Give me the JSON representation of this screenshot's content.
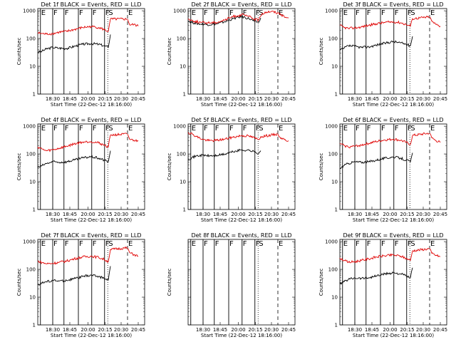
{
  "chart_data": [
    {
      "type": "line",
      "title": "Det 1f BLACK = Events, RED = LLD",
      "xlabel": "Start Time (22-Dec-12 18:16:00)",
      "ylabel": "Counts/sec",
      "xticks": [
        "18:30",
        "18:45",
        "20:00",
        "20:15",
        "20:30",
        "20:45"
      ],
      "yticks": [
        "1",
        "10",
        "100",
        "1000"
      ],
      "ylim": [
        1,
        1000
      ],
      "log_y": true,
      "markers": [
        "E",
        "F",
        "F",
        "F",
        "F",
        "F",
        "S",
        "E"
      ],
      "series": [
        {
          "name": "Events",
          "color": "#000000",
          "x": [
            0.0,
            0.04,
            0.08,
            0.14,
            0.2,
            0.27,
            0.34,
            0.42,
            0.5,
            0.57,
            0.62,
            0.66,
            0.68
          ],
          "y": [
            32,
            35,
            42,
            48,
            45,
            44,
            52,
            62,
            66,
            62,
            55,
            48,
            140
          ]
        },
        {
          "name": "LLD",
          "color": "#e00000",
          "x": [
            0.0,
            0.04,
            0.08,
            0.14,
            0.2,
            0.27,
            0.34,
            0.42,
            0.5,
            0.57,
            0.62,
            0.66,
            0.68,
            0.84,
            0.86,
            0.9,
            0.94
          ],
          "y": [
            160,
            150,
            145,
            150,
            170,
            180,
            210,
            250,
            270,
            250,
            210,
            180,
            500,
            500,
            310,
            320,
            280
          ]
        }
      ]
    },
    {
      "type": "line",
      "title": "Det 2f BLACK = Events, RED = LLD",
      "xlabel": "Start Time (22-Dec-12 18:16:00)",
      "ylabel": "Counts/sec",
      "xticks": [
        "18:30",
        "18:45",
        "20:00",
        "20:15",
        "20:30",
        "20:45"
      ],
      "yticks": [
        "1",
        "10",
        "100",
        "1000"
      ],
      "ylim": [
        1,
        1000
      ],
      "log_y": true,
      "markers": [
        "E",
        "F",
        "F",
        "F",
        "F",
        "F",
        "S",
        "E"
      ],
      "series": [
        {
          "name": "Events",
          "color": "#000000",
          "x": [
            0.0,
            0.06,
            0.12,
            0.18,
            0.26,
            0.34,
            0.42,
            0.5,
            0.57,
            0.62,
            0.66,
            0.68
          ],
          "y": [
            430,
            360,
            330,
            320,
            330,
            400,
            520,
            620,
            520,
            420,
            380,
            550
          ]
        },
        {
          "name": "LLD",
          "color": "#e00000",
          "x": [
            0.0,
            0.06,
            0.12,
            0.18,
            0.26,
            0.34,
            0.42,
            0.5,
            0.57,
            0.62,
            0.66,
            0.68,
            0.72,
            0.78,
            0.86,
            0.9,
            0.94
          ],
          "y": [
            500,
            420,
            380,
            370,
            380,
            460,
            620,
            720,
            620,
            500,
            460,
            650,
            900,
            950,
            800,
            600,
            550
          ]
        }
      ]
    },
    {
      "type": "line",
      "title": "Det 3f BLACK = Events, RED = LLD",
      "xlabel": "Start Time (22-Dec-12 18:16:00)",
      "ylabel": "Counts/sec",
      "xticks": [
        "18:30",
        "18:45",
        "20:00",
        "20:15",
        "20:30",
        "20:45"
      ],
      "yticks": [
        "1",
        "10",
        "100",
        "1000"
      ],
      "ylim": [
        1,
        1000
      ],
      "log_y": true,
      "markers": [
        "E",
        "F",
        "F",
        "F",
        "F",
        "F",
        "S",
        "E"
      ],
      "series": [
        {
          "name": "Events",
          "color": "#000000",
          "x": [
            0.0,
            0.04,
            0.08,
            0.14,
            0.2,
            0.27,
            0.34,
            0.42,
            0.5,
            0.57,
            0.62,
            0.66,
            0.68
          ],
          "y": [
            38,
            45,
            55,
            52,
            48,
            50,
            58,
            68,
            78,
            70,
            62,
            55,
            120
          ]
        },
        {
          "name": "LLD",
          "color": "#e00000",
          "x": [
            0.0,
            0.04,
            0.08,
            0.14,
            0.2,
            0.27,
            0.34,
            0.42,
            0.5,
            0.57,
            0.62,
            0.66,
            0.68,
            0.84,
            0.86,
            0.9,
            0.94
          ],
          "y": [
            300,
            250,
            230,
            240,
            260,
            300,
            340,
            380,
            400,
            370,
            320,
            280,
            520,
            600,
            420,
            320,
            280
          ]
        }
      ]
    },
    {
      "type": "line",
      "title": "Det 4f BLACK = Events, RED = LLD",
      "xlabel": "Start Time (22-Dec-12 18:16:00)",
      "ylabel": "Counts/sec",
      "xticks": [
        "18:30",
        "18:45",
        "20:00",
        "20:15",
        "20:30",
        "20:45"
      ],
      "yticks": [
        "1",
        "10",
        "100",
        "1000"
      ],
      "ylim": [
        1,
        1000
      ],
      "log_y": true,
      "markers": [
        "E",
        "F",
        "F",
        "F",
        "F",
        "F",
        "S",
        "E"
      ],
      "series": [
        {
          "name": "Events",
          "color": "#000000",
          "x": [
            0.0,
            0.04,
            0.08,
            0.14,
            0.2,
            0.27,
            0.34,
            0.42,
            0.5,
            0.57,
            0.62,
            0.66,
            0.68
          ],
          "y": [
            32,
            38,
            45,
            52,
            50,
            52,
            60,
            72,
            80,
            70,
            60,
            52,
            130
          ]
        },
        {
          "name": "LLD",
          "color": "#e00000",
          "x": [
            0.0,
            0.04,
            0.08,
            0.14,
            0.2,
            0.27,
            0.34,
            0.42,
            0.5,
            0.57,
            0.62,
            0.66,
            0.68,
            0.84,
            0.86,
            0.9,
            0.94
          ],
          "y": [
            180,
            150,
            130,
            140,
            160,
            190,
            230,
            270,
            280,
            250,
            210,
            180,
            480,
            520,
            340,
            310,
            290
          ]
        }
      ]
    },
    {
      "type": "line",
      "title": "Det 5f BLACK = Events, RED = LLD",
      "xlabel": "Start Time (22-Dec-12 18:16:00)",
      "ylabel": "Counts/sec",
      "xticks": [
        "18:30",
        "18:45",
        "20:00",
        "20:15",
        "20:30",
        "20:45"
      ],
      "yticks": [
        "1",
        "10",
        "100",
        "1000"
      ],
      "ylim": [
        1,
        1000
      ],
      "log_y": true,
      "markers": [
        "E",
        "F",
        "F",
        "F",
        "F",
        "F",
        "S",
        "E"
      ],
      "series": [
        {
          "name": "Events",
          "color": "#000000",
          "x": [
            0.0,
            0.04,
            0.08,
            0.14,
            0.2,
            0.27,
            0.34,
            0.42,
            0.5,
            0.57,
            0.62,
            0.66,
            0.68
          ],
          "y": [
            65,
            75,
            85,
            90,
            85,
            88,
            98,
            120,
            140,
            135,
            120,
            105,
            130
          ]
        },
        {
          "name": "LLD",
          "color": "#e00000",
          "x": [
            0.0,
            0.04,
            0.08,
            0.14,
            0.2,
            0.27,
            0.34,
            0.42,
            0.5,
            0.57,
            0.62,
            0.66,
            0.68,
            0.84,
            0.86,
            0.9,
            0.94
          ],
          "y": [
            600,
            520,
            420,
            330,
            300,
            310,
            340,
            400,
            460,
            440,
            380,
            330,
            420,
            520,
            400,
            330,
            300
          ]
        }
      ]
    },
    {
      "type": "line",
      "title": "Det 6f BLACK = Events, RED = LLD",
      "xlabel": "Start Time (22-Dec-12 18:16:00)",
      "ylabel": "Counts/sec",
      "xticks": [
        "18:30",
        "18:45",
        "20:00",
        "20:15",
        "20:30",
        "20:45"
      ],
      "yticks": [
        "1",
        "10",
        "100",
        "1000"
      ],
      "ylim": [
        1,
        1000
      ],
      "log_y": true,
      "markers": [
        "E",
        "F",
        "F",
        "F",
        "F",
        "F",
        "S",
        "E"
      ],
      "series": [
        {
          "name": "Events",
          "color": "#000000",
          "x": [
            0.0,
            0.04,
            0.08,
            0.14,
            0.2,
            0.27,
            0.34,
            0.42,
            0.5,
            0.57,
            0.62,
            0.66,
            0.68
          ],
          "y": [
            30,
            38,
            46,
            52,
            50,
            52,
            60,
            70,
            78,
            70,
            60,
            52,
            110
          ]
        },
        {
          "name": "LLD",
          "color": "#e00000",
          "x": [
            0.0,
            0.04,
            0.08,
            0.14,
            0.2,
            0.27,
            0.34,
            0.42,
            0.5,
            0.57,
            0.62,
            0.66,
            0.68,
            0.84,
            0.86,
            0.9,
            0.94
          ],
          "y": [
            240,
            200,
            180,
            190,
            210,
            240,
            280,
            320,
            340,
            310,
            260,
            220,
            460,
            560,
            380,
            300,
            260
          ]
        }
      ]
    },
    {
      "type": "line",
      "title": "Det 7f BLACK = Events, RED = LLD",
      "xlabel": "Start Time (22-Dec-12 18:16:00)",
      "ylabel": "Counts/sec",
      "xticks": [
        "18:30",
        "18:45",
        "20:00",
        "20:15",
        "20:30",
        "20:45"
      ],
      "yticks": [
        "1",
        "10",
        "100",
        "1000"
      ],
      "ylim": [
        1,
        1000
      ],
      "log_y": true,
      "markers": [
        "E",
        "F",
        "F",
        "F",
        "F",
        "F",
        "S",
        "E"
      ],
      "series": [
        {
          "name": "Events",
          "color": "#000000",
          "x": [
            0.0,
            0.04,
            0.08,
            0.14,
            0.2,
            0.27,
            0.34,
            0.42,
            0.5,
            0.57,
            0.62,
            0.66,
            0.68
          ],
          "y": [
            28,
            32,
            36,
            40,
            38,
            40,
            46,
            55,
            62,
            56,
            48,
            42,
            130
          ]
        },
        {
          "name": "LLD",
          "color": "#e00000",
          "x": [
            0.0,
            0.04,
            0.08,
            0.14,
            0.2,
            0.27,
            0.34,
            0.42,
            0.5,
            0.57,
            0.62,
            0.66,
            0.68,
            0.84,
            0.86,
            0.9,
            0.94
          ],
          "y": [
            200,
            175,
            160,
            165,
            180,
            200,
            240,
            280,
            300,
            270,
            230,
            190,
            520,
            600,
            400,
            340,
            300
          ]
        }
      ]
    },
    {
      "type": "line",
      "title": "Det 8f BLACK = Events, RED = LLD",
      "xlabel": "Start Time (22-Dec-12 18:16:00)",
      "ylabel": "Counts/sec",
      "xticks": [
        "18:30",
        "18:45",
        "20:00",
        "20:15",
        "20:30",
        "20:45"
      ],
      "yticks": [],
      "ylim": [
        1,
        1000
      ],
      "log_y": true,
      "markers": [
        "E",
        "F",
        "F",
        "F",
        "F",
        "F",
        "S",
        "E"
      ],
      "series": []
    },
    {
      "type": "line",
      "title": "Det 9f BLACK = Events, RED = LLD",
      "xlabel": "Start Time (22-Dec-12 18:16:00)",
      "ylabel": "Counts/sec",
      "xticks": [
        "18:30",
        "18:45",
        "20:00",
        "20:15",
        "20:30",
        "20:45"
      ],
      "yticks": [
        "1",
        "10",
        "100",
        "1000"
      ],
      "ylim": [
        1,
        1000
      ],
      "log_y": true,
      "markers": [
        "E",
        "F",
        "F",
        "F",
        "F",
        "F",
        "S",
        "E"
      ],
      "series": [
        {
          "name": "Events",
          "color": "#000000",
          "x": [
            0.0,
            0.04,
            0.08,
            0.14,
            0.2,
            0.27,
            0.34,
            0.42,
            0.5,
            0.57,
            0.62,
            0.66,
            0.68
          ],
          "y": [
            30,
            36,
            44,
            50,
            48,
            50,
            58,
            68,
            76,
            68,
            58,
            50,
            115
          ]
        },
        {
          "name": "LLD",
          "color": "#e00000",
          "x": [
            0.0,
            0.04,
            0.08,
            0.14,
            0.2,
            0.27,
            0.34,
            0.42,
            0.5,
            0.57,
            0.62,
            0.66,
            0.68,
            0.84,
            0.86,
            0.9,
            0.94
          ],
          "y": [
            260,
            210,
            180,
            190,
            210,
            240,
            280,
            310,
            330,
            300,
            250,
            210,
            470,
            560,
            380,
            320,
            290
          ]
        }
      ]
    }
  ]
}
